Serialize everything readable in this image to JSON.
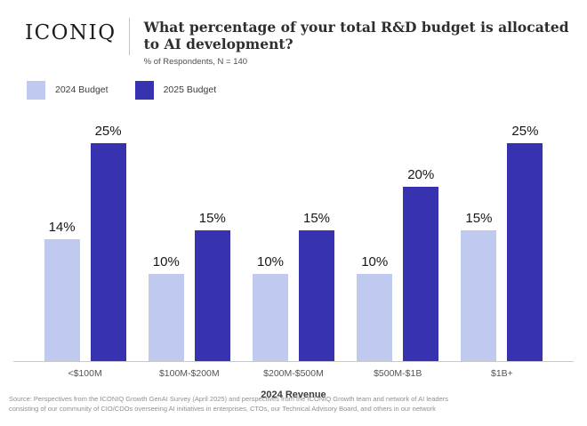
{
  "header": {
    "logo": "ICONIQ",
    "title": "What percentage of your total R&D budget is allocated to AI development?",
    "subtitle": "% of Respondents, N = 140"
  },
  "legend": [
    {
      "label": "2024 Budget",
      "color": "#c0caef"
    },
    {
      "label": "2025 Budget",
      "color": "#3733b0"
    }
  ],
  "chart_data": {
    "type": "bar",
    "categories": [
      "<$100M",
      "$100M-$200M",
      "$200M-$500M",
      "$500M-$1B",
      "$1B+"
    ],
    "series": [
      {
        "name": "2024 Budget",
        "color": "#c0caef",
        "values": [
          14,
          10,
          10,
          10,
          15
        ]
      },
      {
        "name": "2025 Budget",
        "color": "#3733b0",
        "values": [
          25,
          15,
          15,
          20,
          25
        ]
      }
    ],
    "value_suffix": "%",
    "title": "What percentage of your total R&D budget is allocated to AI development?",
    "xlabel": "2024 Revenue",
    "ylabel": "% of Respondents",
    "ylim": [
      0,
      27
    ],
    "grid": false,
    "legend_position": "top-left"
  },
  "footer": {
    "source_line1": "Source: Perspectives from the ICONIQ Growth GenAI Survey (April 2025) and perspectives from the ICONIQ Growth team and network of AI leaders",
    "source_line2": "consisting of our community of CIO/CDOs overseeing AI initiatives in enterprises, CTOs, our Technical Advisory Board, and others in our network"
  }
}
